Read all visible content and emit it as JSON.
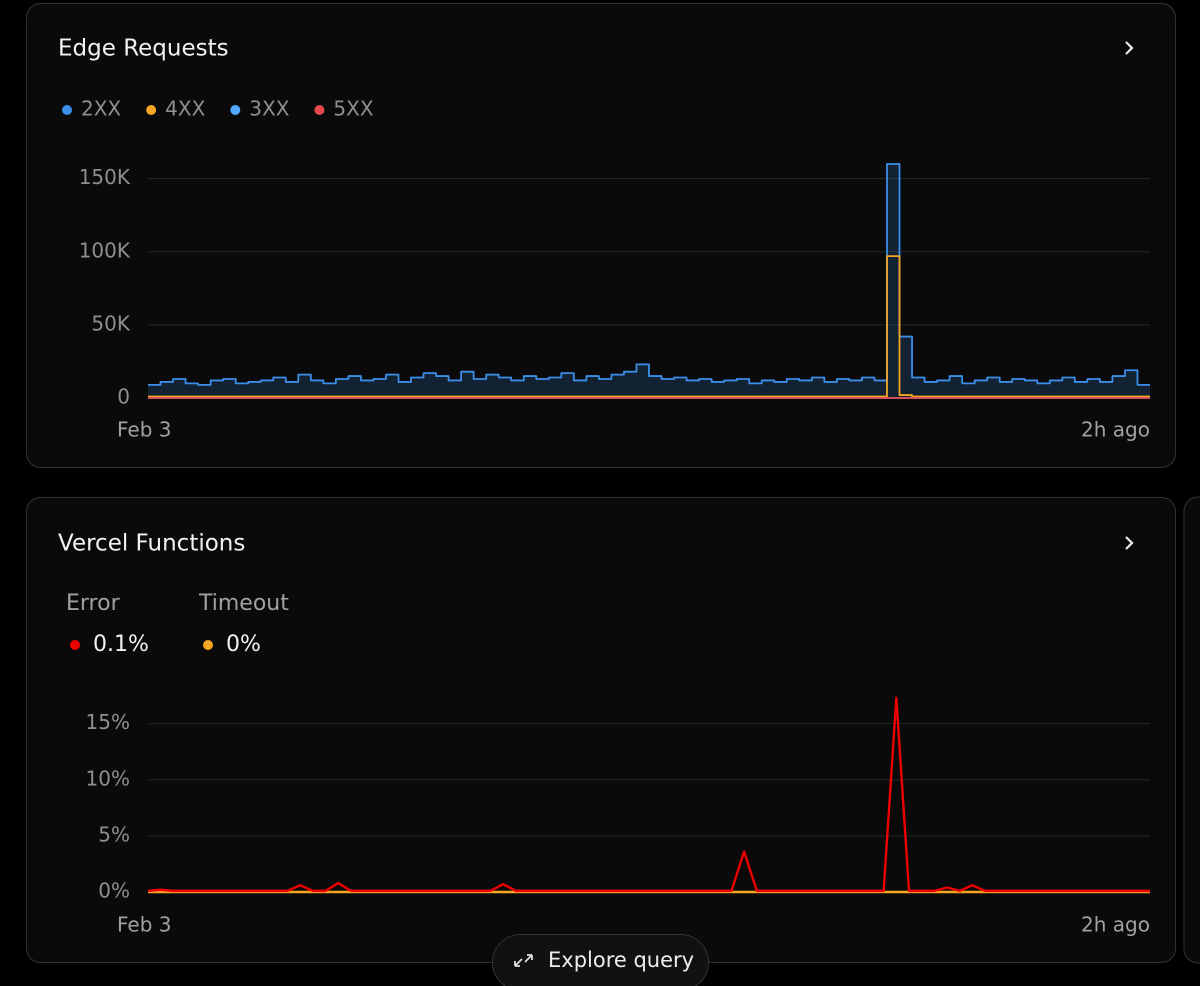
{
  "chart_data": [
    {
      "type": "line",
      "title": "Edge Requests",
      "step": true,
      "grid": true,
      "categories": [
        "Feb 3",
        null,
        null,
        null,
        null,
        null,
        null,
        null,
        null,
        null,
        null,
        null,
        null,
        null,
        null,
        null,
        null,
        null,
        null,
        null,
        null,
        null,
        null,
        null,
        null,
        null,
        null,
        null,
        null,
        null,
        null,
        null,
        null,
        null,
        null,
        null,
        null,
        null,
        null,
        null,
        null,
        null,
        null,
        null,
        null,
        null,
        null,
        null,
        null,
        null,
        null,
        null,
        null,
        null,
        null,
        null,
        null,
        null,
        null,
        null,
        null,
        null,
        null,
        null,
        null,
        null,
        null,
        null,
        null,
        null,
        null,
        null,
        null,
        null,
        null,
        null,
        null,
        null,
        null,
        "2h ago"
      ],
      "ylim": [
        0,
        160000
      ],
      "yticks": [
        0,
        {
          "value": 50000,
          "label": "50K"
        },
        {
          "value": 100000,
          "label": "100K"
        },
        {
          "value": 150000,
          "label": "150K"
        }
      ],
      "series": [
        {
          "name": "2XX",
          "color": "#3b8eea",
          "area": true,
          "values": [
            9000,
            11000,
            13000,
            10000,
            9000,
            12000,
            13000,
            10000,
            11000,
            12000,
            14000,
            11000,
            16000,
            12000,
            10000,
            13000,
            15000,
            12000,
            13000,
            16000,
            11000,
            14000,
            17000,
            15000,
            12000,
            18000,
            13000,
            16000,
            14000,
            12000,
            15000,
            13000,
            14000,
            17000,
            12000,
            15000,
            13000,
            16000,
            18000,
            23000,
            15000,
            13000,
            14000,
            12000,
            13000,
            11000,
            12000,
            13000,
            10000,
            12000,
            11000,
            13000,
            12000,
            14000,
            11000,
            13000,
            12000,
            14000,
            12000,
            160000,
            42000,
            14000,
            11000,
            12000,
            15000,
            10000,
            12000,
            14000,
            11000,
            13000,
            12000,
            10000,
            12000,
            14000,
            11000,
            13000,
            11000,
            15000,
            19000,
            9000
          ]
        },
        {
          "name": "4XX",
          "color": "#f5a623",
          "values": [
            1000,
            1000,
            1000,
            1000,
            1000,
            1000,
            1000,
            1000,
            1000,
            1000,
            1000,
            1000,
            1000,
            1000,
            1000,
            1000,
            1000,
            1000,
            1000,
            1000,
            1000,
            1000,
            1000,
            1000,
            1000,
            1000,
            1000,
            1000,
            1000,
            1000,
            1000,
            1000,
            1000,
            1000,
            1000,
            1000,
            1000,
            1000,
            1000,
            1000,
            1000,
            1000,
            1000,
            1000,
            1000,
            1000,
            1000,
            1000,
            1000,
            1000,
            1000,
            1000,
            1000,
            1000,
            1000,
            1000,
            1000,
            1000,
            1000,
            97000,
            2000,
            1000,
            1000,
            1000,
            1000,
            1000,
            1000,
            1000,
            1000,
            1000,
            1000,
            1000,
            1000,
            1000,
            1000,
            1000,
            1000,
            1000,
            1000,
            1000
          ]
        },
        {
          "name": "3XX",
          "color": "#52a8ff",
          "values": [
            0,
            0,
            0,
            0,
            0,
            0,
            0,
            0,
            0,
            0,
            0,
            0,
            0,
            0,
            0,
            0,
            0,
            0,
            0,
            0,
            0,
            0,
            0,
            0,
            0,
            0,
            0,
            0,
            0,
            0,
            0,
            0,
            0,
            0,
            0,
            0,
            0,
            0,
            0,
            0,
            0,
            0,
            0,
            0,
            0,
            0,
            0,
            0,
            0,
            0,
            0,
            0,
            0,
            0,
            0,
            0,
            0,
            0,
            0,
            0,
            0,
            0,
            0,
            0,
            0,
            0,
            0,
            0,
            0,
            0,
            0,
            0,
            0,
            0,
            0,
            0,
            0,
            0,
            0,
            0
          ]
        },
        {
          "name": "5XX",
          "color": "#e5484d",
          "values": [
            0,
            0,
            0,
            0,
            0,
            0,
            0,
            0,
            0,
            0,
            0,
            0,
            0,
            0,
            0,
            0,
            0,
            0,
            0,
            0,
            0,
            0,
            0,
            0,
            0,
            0,
            0,
            0,
            0,
            0,
            0,
            0,
            0,
            0,
            0,
            0,
            0,
            0,
            0,
            0,
            0,
            0,
            0,
            0,
            0,
            0,
            0,
            0,
            0,
            0,
            0,
            0,
            0,
            0,
            0,
            0,
            0,
            0,
            0,
            0,
            0,
            0,
            0,
            0,
            0,
            0,
            0,
            0,
            0,
            0,
            0,
            0,
            0,
            0,
            0,
            0,
            0,
            0,
            0,
            0
          ]
        }
      ]
    },
    {
      "type": "line",
      "title": "Vercel Functions",
      "step": false,
      "grid": true,
      "categories": [
        "Feb 3",
        null,
        null,
        null,
        null,
        null,
        null,
        null,
        null,
        null,
        null,
        null,
        null,
        null,
        null,
        null,
        null,
        null,
        null,
        null,
        null,
        null,
        null,
        null,
        null,
        null,
        null,
        null,
        null,
        null,
        null,
        null,
        null,
        null,
        null,
        null,
        null,
        null,
        null,
        null,
        null,
        null,
        null,
        null,
        null,
        null,
        null,
        null,
        null,
        null,
        null,
        null,
        null,
        null,
        null,
        null,
        null,
        null,
        null,
        null,
        null,
        null,
        null,
        null,
        null,
        null,
        null,
        null,
        null,
        null,
        null,
        null,
        null,
        null,
        null,
        null,
        null,
        null,
        null,
        "2h ago"
      ],
      "ylim": [
        0,
        18
      ],
      "yticks": [
        {
          "value": 0,
          "label": "0%"
        },
        {
          "value": 5,
          "label": "5%"
        },
        {
          "value": 10,
          "label": "10%"
        },
        {
          "value": 15,
          "label": "15%"
        }
      ],
      "series": [
        {
          "name": "Timeout",
          "color": "#f5a623",
          "total_label": "0%",
          "values": [
            0,
            0,
            0,
            0,
            0,
            0,
            0,
            0,
            0,
            0,
            0,
            0,
            0,
            0,
            0,
            0,
            0,
            0,
            0,
            0,
            0,
            0,
            0,
            0,
            0,
            0,
            0,
            0,
            0,
            0,
            0,
            0,
            0,
            0,
            0,
            0,
            0,
            0,
            0,
            0,
            0,
            0,
            0,
            0,
            0,
            0,
            0,
            0,
            0,
            0,
            0,
            0,
            0,
            0,
            0,
            0,
            0,
            0,
            0,
            0,
            0,
            0,
            0,
            0,
            0,
            0,
            0,
            0,
            0,
            0,
            0,
            0,
            0,
            0,
            0,
            0,
            0,
            0,
            0,
            0
          ]
        },
        {
          "name": "Error",
          "color": "#ee0000",
          "total_label": "0.1%",
          "values": [
            0.1,
            0.2,
            0.1,
            0.1,
            0.1,
            0.1,
            0.1,
            0.1,
            0.1,
            0.1,
            0.1,
            0.1,
            0.6,
            0.1,
            0.1,
            0.8,
            0.1,
            0.1,
            0.1,
            0.1,
            0.1,
            0.1,
            0.1,
            0.1,
            0.1,
            0.1,
            0.1,
            0.1,
            0.7,
            0.1,
            0.1,
            0.1,
            0.1,
            0.1,
            0.1,
            0.1,
            0.1,
            0.1,
            0.1,
            0.1,
            0.1,
            0.1,
            0.1,
            0.1,
            0.1,
            0.1,
            0.1,
            3.6,
            0.1,
            0.1,
            0.1,
            0.1,
            0.1,
            0.1,
            0.1,
            0.1,
            0.1,
            0.1,
            0.1,
            17.3,
            0.1,
            0.1,
            0.1,
            0.4,
            0.1,
            0.6,
            0.1,
            0.1,
            0.1,
            0.1,
            0.1,
            0.1,
            0.1,
            0.1,
            0.1,
            0.1,
            0.1,
            0.1,
            0.1,
            0.1
          ]
        }
      ]
    }
  ],
  "ui": {
    "explore_button": "Explore query"
  }
}
